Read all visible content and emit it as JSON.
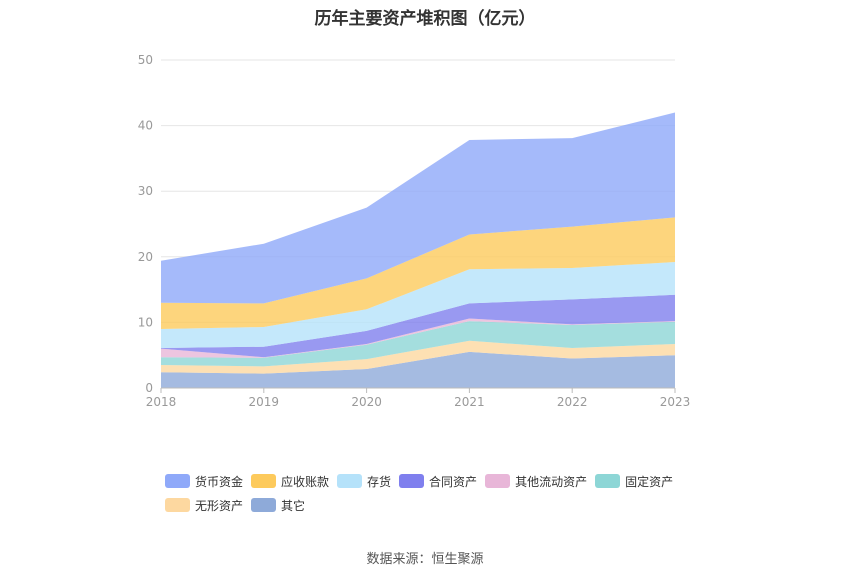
{
  "chart_data": {
    "type": "area",
    "stacked": true,
    "title": "历年主要资产堆积图（亿元）",
    "x": [
      "2018",
      "2019",
      "2020",
      "2021",
      "2022",
      "2023"
    ],
    "ylim": [
      0,
      50
    ],
    "yticks": [
      0,
      10,
      20,
      30,
      40,
      50
    ],
    "grid": true,
    "legend_position": "bottom",
    "series": [
      {
        "name": "其它",
        "color": "#8eaad9",
        "values": [
          2.4,
          2.2,
          2.9,
          5.5,
          4.5,
          5.0
        ]
      },
      {
        "name": "无形资产",
        "color": "#fdd8a0",
        "values": [
          1.1,
          1.1,
          1.5,
          1.7,
          1.6,
          1.7
        ]
      },
      {
        "name": "固定资产",
        "color": "#8dd6d6",
        "values": [
          1.2,
          1.3,
          2.2,
          3.0,
          3.5,
          3.4
        ]
      },
      {
        "name": "其他流动资产",
        "color": "#e8b6d8",
        "values": [
          1.3,
          0.1,
          0.1,
          0.4,
          0.1,
          0.1
        ]
      },
      {
        "name": "合同资产",
        "color": "#7f7fee",
        "values": [
          0.1,
          1.6,
          2.0,
          2.3,
          3.8,
          4.0
        ]
      },
      {
        "name": "存货",
        "color": "#b5e2fa",
        "values": [
          2.9,
          3.0,
          3.3,
          5.2,
          4.8,
          5.0
        ]
      },
      {
        "name": "应收账款",
        "color": "#fdca5c",
        "values": [
          4.0,
          3.6,
          4.7,
          5.3,
          6.3,
          6.8
        ]
      },
      {
        "name": "货币资金",
        "color": "#8fa9f9",
        "values": [
          6.4,
          9.1,
          10.8,
          14.4,
          13.5,
          16.0
        ]
      }
    ],
    "legend_order": [
      "货币资金",
      "应收账款",
      "存货",
      "合同资产",
      "其他流动资产",
      "固定资产",
      "无形资产",
      "其它"
    ]
  },
  "source_label": "数据来源：恒生聚源"
}
